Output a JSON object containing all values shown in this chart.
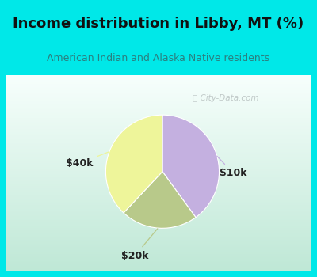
{
  "title": "Income distribution in Libby, MT (%)",
  "subtitle": "American Indian and Alaska Native residents",
  "header_color": "#00e8e8",
  "chart_border_color": "#00e8e8",
  "slices": [
    {
      "label": "$10k",
      "value": 40,
      "color": "#c4b0e0"
    },
    {
      "label": "$20k",
      "value": 22,
      "color": "#b8c98a"
    },
    {
      "label": "$40k",
      "value": 38,
      "color": "#eef59a"
    }
  ],
  "watermark": "City-Data.com",
  "bg_gradient_top": "#f5fffe",
  "bg_gradient_bottom": "#c5e8d8",
  "figsize": [
    4.0,
    3.5
  ],
  "dpi": 100,
  "title_fontsize": 13,
  "subtitle_fontsize": 9,
  "label_fontsize": 9
}
